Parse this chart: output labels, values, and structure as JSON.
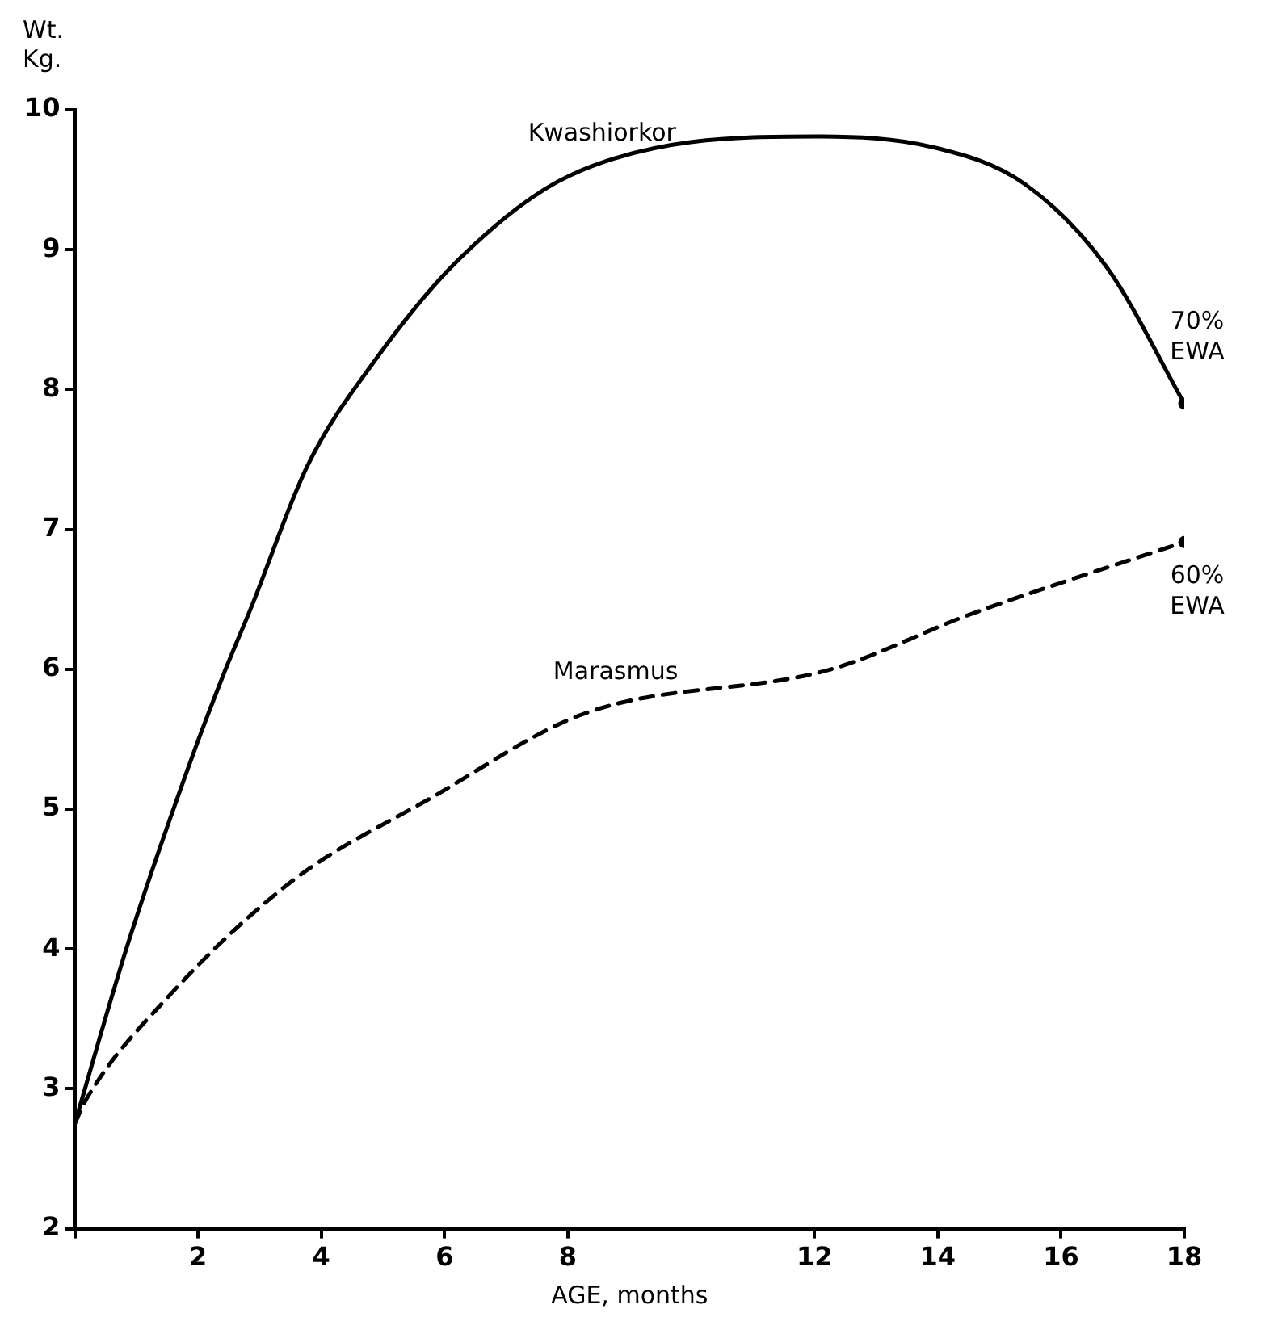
{
  "chart_data": {
    "type": "line",
    "xlabel": "AGE, months",
    "ylabel": "Wt. Kg.",
    "xlim": [
      0,
      18
    ],
    "xticks": [
      {
        "value": 0,
        "label": null
      },
      2,
      4,
      6,
      8,
      12,
      14,
      16,
      18
    ],
    "ylim": [
      2,
      10
    ],
    "yticks": [
      2,
      3,
      4,
      5,
      6,
      7,
      8,
      9,
      10
    ],
    "grid": false,
    "legend": false,
    "series": [
      {
        "name": "Kwashiorkor",
        "color": "#000000",
        "line_style": "solid",
        "x": [
          0,
          0.85,
          1.86,
          2.42,
          2.87,
          3.77,
          4.89,
          6.23,
          8.03,
          12,
          13.95,
          15.41,
          16.75,
          18
        ],
        "values": [
          2.75,
          4.02,
          5.32,
          5.97,
          6.45,
          7.45,
          8.22,
          8.93,
          9.53,
          9.81,
          9.73,
          9.47,
          8.87,
          7.9
        ]
      },
      {
        "name": "Marasmus",
        "color": "#000000",
        "line_style": "dashed",
        "x": [
          0,
          0.18,
          1.52,
          3.54,
          5.78,
          8.25,
          12.27,
          14.51,
          18
        ],
        "values": [
          2.75,
          2.92,
          3.66,
          4.49,
          5.08,
          5.68,
          6.0,
          6.39,
          6.91
        ]
      }
    ],
    "annotations": [
      "70% EWA",
      "60% EWA"
    ]
  }
}
